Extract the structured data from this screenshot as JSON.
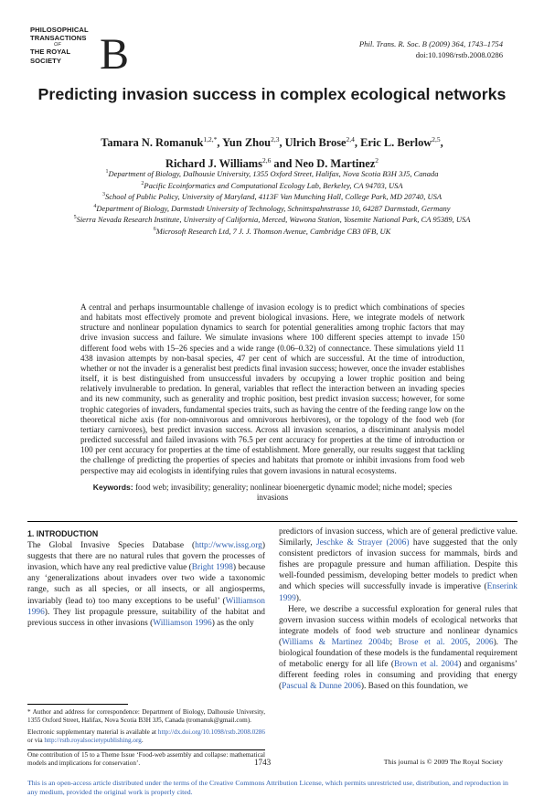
{
  "header": {
    "logo_lines": [
      "PHILOSOPHICAL",
      "TRANSACTIONS",
      "THE ROYAL",
      "SOCIETY"
    ],
    "logo_of": "OF",
    "logo_mark": "B",
    "citation_line1": "Phil. Trans. R. Soc. B (2009) 364, 1743–1754",
    "citation_line2": "doi:10.1098/rstb.2008.0286"
  },
  "title": "Predicting invasion success in complex ecological networks",
  "authors": [
    {
      "name": "Tamara N. Romanuk",
      "sup": "1,2,*"
    },
    {
      "name": "Yun Zhou",
      "sup": "2,3"
    },
    {
      "name": "Ulrich Brose",
      "sup": "2,4"
    },
    {
      "name": "Eric L. Berlow",
      "sup": "2,5"
    },
    {
      "name": "Richard J. Williams",
      "sup": "2,6"
    },
    {
      "name": "Neo D. Martinez",
      "sup": "2"
    }
  ],
  "affiliations": [
    {
      "n": "1",
      "text": "Department of Biology, Dalhousie University, 1355 Oxford Street, Halifax, Nova Scotia B3H 3J5, Canada"
    },
    {
      "n": "2",
      "text": "Pacific Ecoinformatics and Computational Ecology Lab, Berkeley, CA 94703, USA"
    },
    {
      "n": "3",
      "text": "School of Public Policy, University of Maryland, 4113F Van Munching Hall, College Park, MD 20740, USA"
    },
    {
      "n": "4",
      "text": "Department of Biology, Darmstadt University of Technology, Schnittspahnstrasse 10, 64287 Darmstadt, Germany"
    },
    {
      "n": "5",
      "text": "Sierra Nevada Research Institute, University of California, Merced, Wawona Station, Yosemite National Park, CA 95389, USA"
    },
    {
      "n": "6",
      "text": "Microsoft Research Ltd, 7 J. J. Thomson Avenue, Cambridge CB3 0FB, UK"
    }
  ],
  "abstract": "A central and perhaps insurmountable challenge of invasion ecology is to predict which combinations of species and habitats most effectively promote and prevent biological invasions. Here, we integrate models of network structure and nonlinear population dynamics to search for potential generalities among trophic factors that may drive invasion success and failure. We simulate invasions where 100 different species attempt to invade 150 different food webs with 15–26 species and a wide range (0.06–0.32) of connectance. These simulations yield 11 438 invasion attempts by non-basal species, 47 per cent of which are successful. At the time of introduction, whether or not the invader is a generalist best predicts final invasion success; however, once the invader establishes itself, it is best distinguished from unsuccessful invaders by occupying a lower trophic position and being relatively invulnerable to predation. In general, variables that reflect the interaction between an invading species and its new community, such as generality and trophic position, best predict invasion success; however, for some trophic categories of invaders, fundamental species traits, such as having the centre of the feeding range low on the theoretical niche axis (for non-omnivorous and omnivorous herbivores), or the topology of the food web (for tertiary carnivores), best predict invasion success. Across all invasion scenarios, a discriminant analysis model predicted successful and failed invasions with 76.5 per cent accuracy for properties at the time of introduction or 100 per cent accuracy for properties at the time of establishment. More generally, our results suggest that tackling the challenge of predicting the properties of species and habitats that promote or inhibit invasions from food web perspective may aid ecologists in identifying rules that govern invasions in natural ecosystems.",
  "keywords_label": "Keywords:",
  "keywords": "food web; invasibility; generality; nonlinear bioenergetic dynamic model; niche model; species invasions",
  "intro": {
    "heading": "1. INTRODUCTION",
    "left_p1_a": "The Global Invasive Species Database (",
    "left_p1_link1": "http://www.issg.org",
    "left_p1_b": ") suggests that there are no natural rules that govern the processes of invasion, which have any real predictive value (",
    "left_p1_link2": "Bright 1998",
    "left_p1_c": ") because any ‘generalizations about invaders over two wide a taxonomic range, such as all species, or all insects, or all angiosperms, invariably (lead to) too many exceptions to be useful’ (",
    "left_p1_link3": "Williamson 1996",
    "left_p1_d": "). They list propagule pressure, suitability of the habitat and previous success in other invasions (",
    "left_p1_link4": "Williamson 1996",
    "left_p1_e": ") as the only",
    "right_p1_a": "predictors of invasion success, which are of general predictive value. Similarly, ",
    "right_p1_link1": "Jeschke & Strayer (2006)",
    "right_p1_b": " have suggested that the only consistent predictors of invasion success for mammals, birds and fishes are propagule pressure and human affiliation. Despite this well-founded pessimism, developing better models to predict when and which species will successfully invade is imperative (",
    "right_p1_link2": "Enserink 1999",
    "right_p1_c": ").",
    "right_p2_a": "Here, we describe a successful exploration for general rules that govern invasion success within models of ecological networks that integrate models of food web structure and nonlinear dynamics (",
    "right_p2_link1": "Williams & Martinez 2004b",
    "right_p2_b": "; ",
    "right_p2_link2": "Brose et al. 2005",
    "right_p2_c": ", ",
    "right_p2_link3": "2006",
    "right_p2_d": "). The biological foundation of these models is the fundamental requirement of metabolic energy for all life (",
    "right_p2_link4": "Brown et al. 2004",
    "right_p2_e": ") and organisms’ different feeding roles in consuming and providing that energy (",
    "right_p2_link5": "Pascual & Dunne 2006",
    "right_p2_f": "). Based on this foundation, we"
  },
  "footnotes": {
    "correspondence": "* Author and address for correspondence: Department of Biology, Dalhousie University, 1355 Oxford Street, Halifax, Nova Scotia B3H 3J5, Canada (tromanuk@gmail.com).",
    "esm_a": "Electronic supplementary material is available at ",
    "esm_link1": "http://dx.doi.org/10.1098/rstb.2008.0286",
    "esm_b": " or via ",
    "esm_link2": "http://rstb.royalsocietypublishing.org",
    "esm_c": ".",
    "theme": "One contribution of 15 to a Theme Issue ‘Food-web assembly and collapse: mathematical models and implications for conservation’."
  },
  "footer": {
    "page_number": "1743",
    "journal_note": "This journal is © 2009 The Royal Society",
    "license": "This is an open-access article distributed under the terms of the Creative Commons Attribution License, which permits unrestricted use, distribution, and reproduction in any medium, provided the original work is properly cited."
  },
  "colors": {
    "link": "#2f5faf",
    "text": "#1a1a1a"
  }
}
